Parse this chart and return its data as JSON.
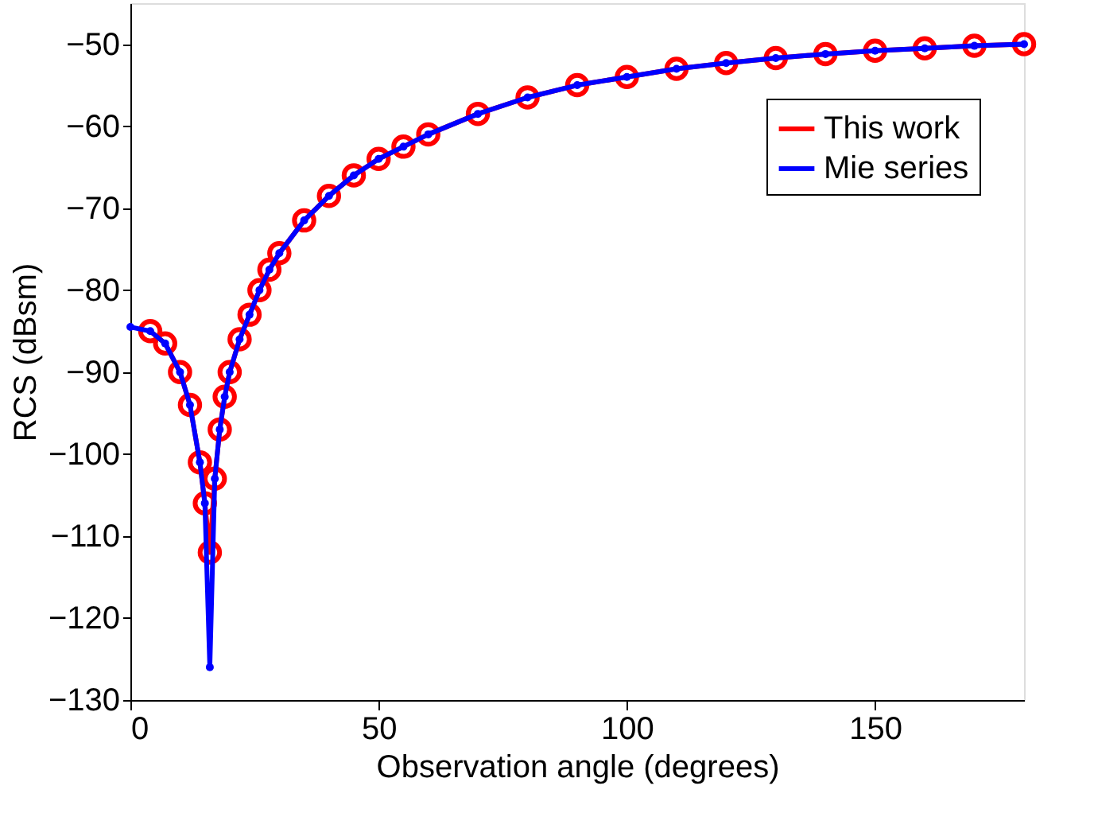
{
  "chart_data": {
    "type": "line",
    "xlabel": "Observation angle (degrees)",
    "ylabel": "RCS (dBsm)",
    "xlim": [
      0,
      180
    ],
    "xticks": [
      0,
      50,
      100,
      150
    ],
    "ylim": [
      -130,
      -45
    ],
    "yticks": [
      -130,
      -120,
      -110,
      -100,
      -90,
      -80,
      -70,
      -60,
      -50
    ],
    "grid": false,
    "legend": "top right",
    "line_style": "solid",
    "series": [
      {
        "name": "This work",
        "color": "#ff0000",
        "marker": "circle",
        "x": [
          4,
          7,
          10,
          12,
          14,
          15,
          16,
          17,
          18,
          19,
          20,
          22,
          24,
          26,
          28,
          30,
          35,
          40,
          45,
          50,
          55,
          60,
          70,
          80,
          90,
          100,
          110,
          120,
          130,
          140,
          150,
          160,
          170,
          180
        ],
        "values": [
          -85,
          -86.5,
          -90,
          -94,
          -101,
          -106,
          -112,
          -103,
          -97,
          -93,
          -90,
          -86,
          -83,
          -80,
          -77.5,
          -75.5,
          -71.5,
          -68.5,
          -66,
          -64,
          -62.5,
          -61,
          -58.5,
          -56.5,
          -55,
          -54,
          -53,
          -52.3,
          -51.7,
          -51.2,
          -50.8,
          -50.5,
          -50.2,
          -50
        ]
      },
      {
        "name": "Mie series",
        "color": "#0000ff",
        "marker": "point",
        "x": [
          0,
          4,
          7,
          10,
          12,
          14,
          15,
          16,
          17,
          18,
          19,
          20,
          22,
          24,
          26,
          28,
          30,
          35,
          40,
          45,
          50,
          55,
          60,
          70,
          80,
          90,
          100,
          110,
          120,
          130,
          140,
          150,
          160,
          170,
          180
        ],
        "values": [
          -84.5,
          -85,
          -86.5,
          -90,
          -94,
          -101,
          -106,
          -126,
          -103,
          -97,
          -93,
          -90,
          -86,
          -83,
          -80,
          -77.5,
          -75.5,
          -71.5,
          -68.5,
          -66,
          -64,
          -62.5,
          -61,
          -58.5,
          -56.5,
          -55,
          -54,
          -53,
          -52.3,
          -51.7,
          -51.2,
          -50.8,
          -50.5,
          -50.2,
          -50
        ]
      }
    ]
  }
}
